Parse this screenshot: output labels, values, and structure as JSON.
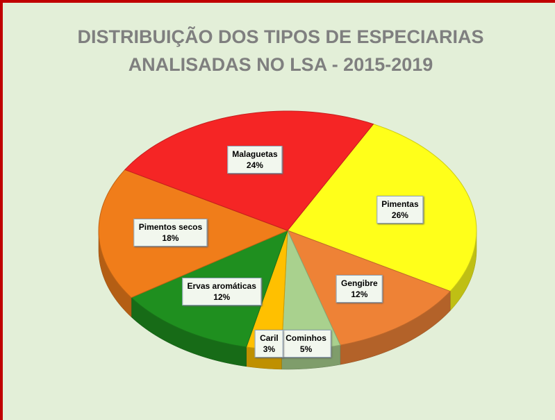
{
  "chart_data": {
    "type": "pie",
    "title": [
      "DISTRIBUIÇÃO DOS TIPOS DE ESPECIARIAS",
      "ANALISADAS NO LSA  - 2015-2019"
    ],
    "categories": [
      "Pimentas",
      "Gengibre",
      "Cominhos",
      "Caril",
      "Ervas aromáticas",
      "Pimentos secos",
      "Malaguetas"
    ],
    "values": [
      26,
      12,
      5,
      3,
      12,
      18,
      24
    ],
    "value_labels": [
      "26%",
      "12%",
      "5%",
      "3%",
      "12%",
      "18%",
      "24%"
    ],
    "colors": [
      "#ffff1a",
      "#ee8236",
      "#a9d18e",
      "#ffc000",
      "#1f8f1f",
      "#f07d1a",
      "#f52525"
    ]
  }
}
